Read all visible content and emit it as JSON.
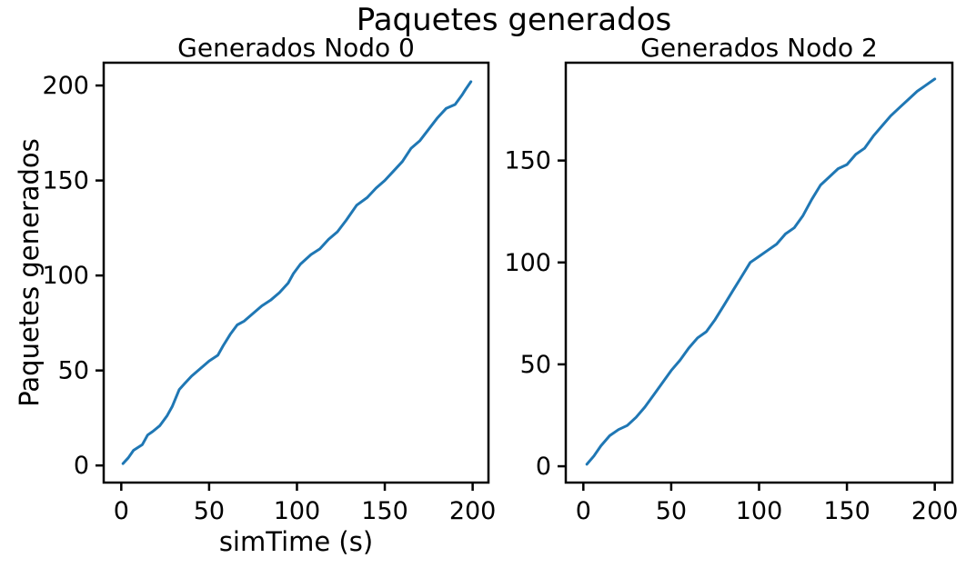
{
  "figure": {
    "suptitle": "Paquetes generados"
  },
  "chart_data": [
    {
      "type": "line",
      "title": "Generados Nodo 0",
      "xlabel": "simTime (s)",
      "ylabel": "Paquetes generados",
      "xlim": [
        -10,
        209
      ],
      "ylim": [
        -9,
        212
      ],
      "xticks": [
        0,
        50,
        100,
        150,
        200
      ],
      "yticks": [
        0,
        50,
        100,
        150,
        200
      ],
      "grid": false,
      "series": [
        {
          "color": "#1f77b4",
          "x": [
            1,
            4,
            7,
            12,
            15,
            18,
            22,
            26,
            29,
            33,
            36,
            40,
            45,
            50,
            55,
            58,
            62,
            66,
            70,
            75,
            80,
            85,
            90,
            95,
            98,
            102,
            108,
            113,
            118,
            123,
            128,
            134,
            140,
            145,
            150,
            155,
            160,
            165,
            170,
            175,
            180,
            185,
            190,
            194,
            196,
            199
          ],
          "y": [
            1,
            4,
            8,
            11,
            16,
            18,
            21,
            26,
            31,
            40,
            43,
            47,
            51,
            55,
            58,
            63,
            69,
            74,
            76,
            80,
            84,
            87,
            91,
            96,
            101,
            106,
            111,
            114,
            119,
            123,
            129,
            137,
            141,
            146,
            150,
            155,
            160,
            167,
            171,
            177,
            183,
            188,
            190,
            195,
            198,
            202
          ]
        }
      ]
    },
    {
      "type": "line",
      "title": "Generados Nodo 2",
      "xlabel": "",
      "ylabel": "",
      "xlim": [
        -10,
        210
      ],
      "ylim": [
        -8,
        198
      ],
      "xticks": [
        0,
        50,
        100,
        150,
        200
      ],
      "yticks": [
        0,
        50,
        100,
        150
      ],
      "grid": false,
      "series": [
        {
          "color": "#1f77b4",
          "x": [
            2,
            6,
            10,
            15,
            20,
            25,
            30,
            35,
            40,
            45,
            50,
            55,
            60,
            65,
            70,
            75,
            80,
            85,
            90,
            95,
            100,
            105,
            110,
            115,
            120,
            125,
            130,
            135,
            140,
            145,
            150,
            155,
            160,
            165,
            170,
            175,
            180,
            185,
            190,
            195,
            200
          ],
          "y": [
            1,
            5,
            10,
            15,
            18,
            20,
            24,
            29,
            35,
            41,
            47,
            52,
            58,
            63,
            66,
            72,
            79,
            86,
            93,
            100,
            103,
            106,
            109,
            114,
            117,
            123,
            131,
            138,
            142,
            146,
            148,
            153,
            156,
            162,
            167,
            172,
            176,
            180,
            184,
            187,
            190
          ]
        }
      ]
    }
  ]
}
